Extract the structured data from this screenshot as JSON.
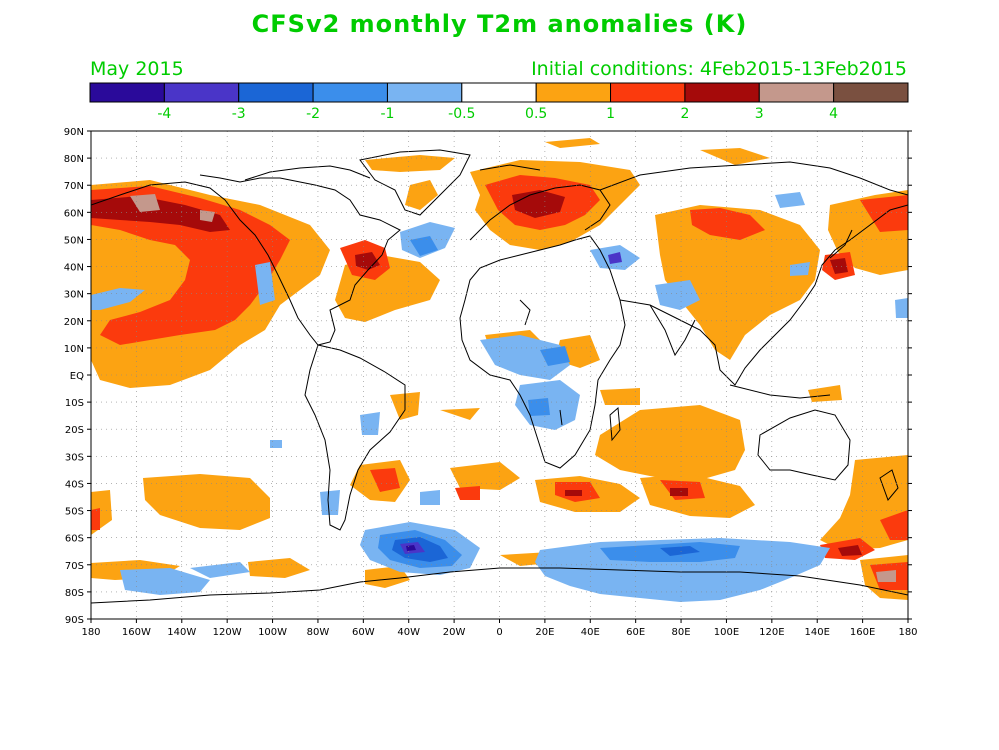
{
  "title": "CFSv2 monthly T2m anomalies (K)",
  "month_label": "May 2015",
  "initial_conditions": "Initial conditions: 4Feb2015-13Feb2015",
  "colorbar": {
    "colors": [
      "#2a0a9a",
      "#4a35c8",
      "#1b66d6",
      "#3b8eeb",
      "#79b4f2",
      "#ffffff",
      "#fca312",
      "#fb3a0d",
      "#a50a0a",
      "#c4988c",
      "#7a5040"
    ],
    "labels": [
      "-4",
      "-3",
      "-2",
      "-1",
      "-0.5",
      "0.5",
      "1",
      "2",
      "3",
      "4"
    ]
  },
  "lat_labels": [
    "90N",
    "80N",
    "70N",
    "60N",
    "50N",
    "40N",
    "30N",
    "20N",
    "10N",
    "EQ",
    "10S",
    "20S",
    "30S",
    "40S",
    "50S",
    "60S",
    "70S",
    "80S",
    "90S"
  ],
  "lon_labels": [
    "180",
    "160W",
    "140W",
    "120W",
    "100W",
    "80W",
    "60W",
    "40W",
    "20W",
    "0",
    "20E",
    "40E",
    "60E",
    "80E",
    "100E",
    "120E",
    "140E",
    "160E",
    "180"
  ],
  "palette": {
    "title_green": "#00cc00",
    "warm_light": "#fca312",
    "warm_mid": "#fb3a0d",
    "warm_dark": "#a50a0a",
    "warm_top": "#c4988c",
    "cool_light": "#79b4f2",
    "cool_mid": "#3b8eeb",
    "cool_dark": "#1b66d6",
    "cool_deep": "#4a35c8",
    "cool_top": "#2a0a9a"
  }
}
